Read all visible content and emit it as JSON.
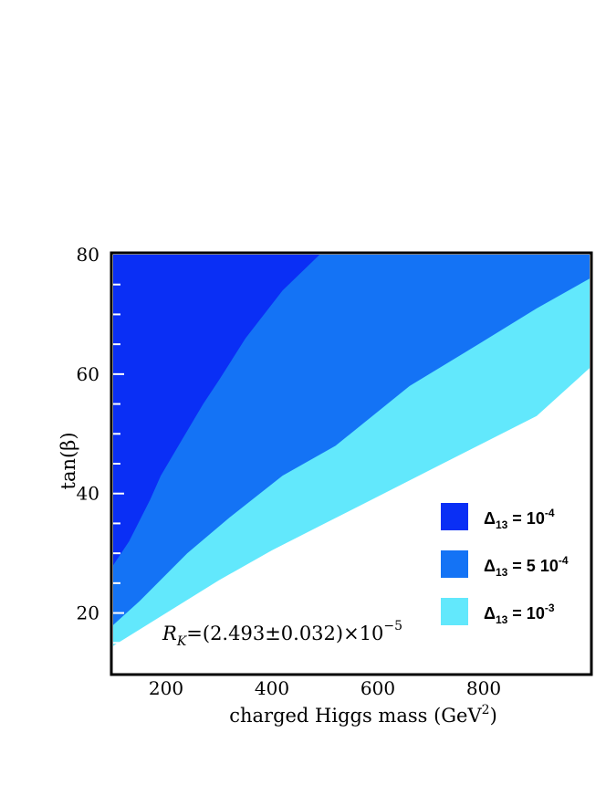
{
  "chart_data": {
    "type": "area",
    "xlabel": "charged Higgs mass (GeV",
    "xlabel_sup": "2",
    "xlabel_close": ")",
    "ylabel": "tan(β)",
    "xlim": [
      100,
      1000
    ],
    "ylim": [
      10,
      80
    ],
    "x_ticks": [
      200,
      400,
      600,
      800
    ],
    "y_ticks": [
      20,
      40,
      60,
      80
    ],
    "annotation": {
      "main": "R",
      "sub": "K",
      "rest": "=(2.493±0.032)×10",
      "sup": "−5"
    },
    "legend_position": "bottom-right",
    "series": [
      {
        "name_main": "Δ",
        "name_sub": "13",
        "name_rest": " = 10",
        "name_sup": "-4",
        "color": "#0a2ff5",
        "boundary": [
          [
            100,
            28
          ],
          [
            130,
            32
          ],
          [
            170,
            39
          ],
          [
            190,
            43
          ],
          [
            230,
            49
          ],
          [
            270,
            55
          ],
          [
            300,
            59
          ],
          [
            350,
            66
          ],
          [
            420,
            74
          ],
          [
            490,
            80
          ]
        ]
      },
      {
        "name_main": "Δ",
        "name_sub": "13",
        "name_rest": " = 5 10",
        "name_sup": "-4",
        "color": "#1473f5",
        "boundary": [
          [
            100,
            18
          ],
          [
            150,
            22
          ],
          [
            240,
            30
          ],
          [
            320,
            36
          ],
          [
            420,
            43
          ],
          [
            520,
            48
          ],
          [
            660,
            58
          ],
          [
            790,
            65
          ],
          [
            900,
            71
          ],
          [
            1000,
            76
          ]
        ]
      },
      {
        "name_main": "Δ",
        "name_sub": "13",
        "name_rest": " = 10",
        "name_sup": "-3",
        "color": "#62e8fc",
        "boundary": [
          [
            100,
            14.5
          ],
          [
            200,
            20
          ],
          [
            300,
            25.5
          ],
          [
            400,
            30.5
          ],
          [
            500,
            35
          ],
          [
            600,
            39.5
          ],
          [
            700,
            44
          ],
          [
            800,
            48.5
          ],
          [
            900,
            53
          ],
          [
            1000,
            61
          ]
        ]
      }
    ]
  }
}
